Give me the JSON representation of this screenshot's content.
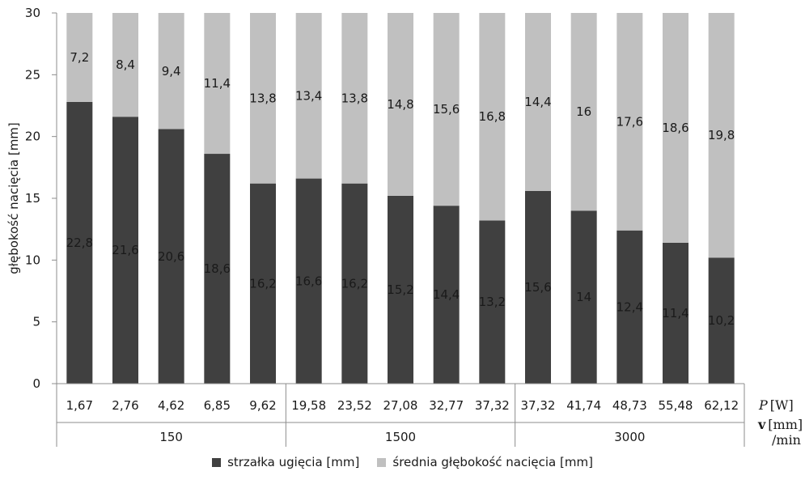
{
  "chart_data": {
    "type": "bar",
    "stacked": true,
    "ylabel": "głębokość nacięcia [mm]",
    "ylim": [
      0,
      30
    ],
    "yticks": [
      "0",
      "5",
      "10",
      "15",
      "20",
      "25",
      "30"
    ],
    "grid": false,
    "legend_position": "bottom",
    "categories": [
      "1,67",
      "2,76",
      "4,62",
      "6,85",
      "9,62",
      "19,58",
      "23,52",
      "27,08",
      "32,77",
      "37,32",
      "37,32",
      "41,74",
      "48,73",
      "55,48",
      "62,12"
    ],
    "groups": [
      {
        "label": "150",
        "count": 5
      },
      {
        "label": "1500",
        "count": 5
      },
      {
        "label": "3000",
        "count": 5
      }
    ],
    "axis_units": {
      "p_symbol": "P",
      "p_unit": "[W]",
      "v_symbol": "v",
      "v_unit": "[mm]",
      "v_unit_denominator": "/min"
    },
    "series": [
      {
        "name": "strzałka ugięcia [mm]",
        "color": "#404040",
        "values": [
          22.8,
          21.6,
          20.6,
          18.6,
          16.2,
          16.6,
          16.2,
          15.2,
          14.4,
          13.2,
          15.6,
          14,
          12.4,
          11.4,
          10.2
        ],
        "labels": [
          "22,8",
          "21,6",
          "20,6",
          "18,6",
          "16,2",
          "16,6",
          "16,2",
          "15,2",
          "14,4",
          "13,2",
          "15,6",
          "14",
          "12,4",
          "11,4",
          "10,2"
        ]
      },
      {
        "name": "średnia głębokość nacięcia [mm]",
        "color": "#c0c0c0",
        "values": [
          7.2,
          8.4,
          9.4,
          11.4,
          13.8,
          13.4,
          13.8,
          14.8,
          15.6,
          16.8,
          14.4,
          16,
          17.6,
          18.6,
          19.8
        ],
        "labels": [
          "7,2",
          "8,4",
          "9,4",
          "11,4",
          "13,8",
          "13,4",
          "13,8",
          "14,8",
          "15,6",
          "16,8",
          "14,4",
          "16",
          "17,6",
          "18,6",
          "19,8"
        ]
      }
    ]
  }
}
